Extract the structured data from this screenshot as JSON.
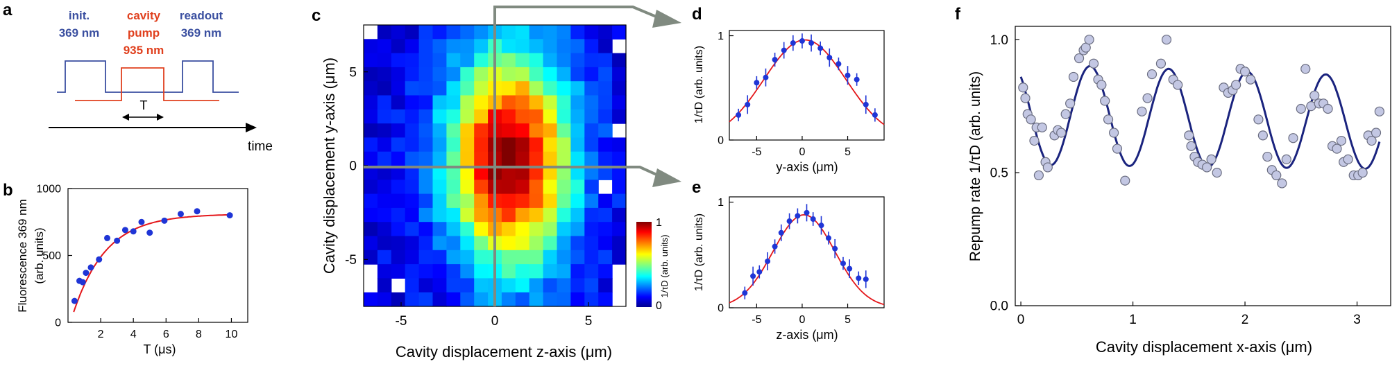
{
  "panel_letters": {
    "a": "a",
    "b": "b",
    "c": "c",
    "d": "d",
    "e": "e",
    "f": "f"
  },
  "colors": {
    "blue": "#3a4fa0",
    "red": "#e0401e",
    "fit_red": "#e4161a",
    "points": "#1f35d6",
    "navy": "#1a237e",
    "gray": "#808a80",
    "light_points": "#c3c7e3"
  },
  "pulse": {
    "init_line1": "init.",
    "init_line2": "369 nm",
    "cavity_line1": "cavity",
    "cavity_line2": "pump",
    "cavity_line3": "935 nm",
    "readout_line1": "readout",
    "readout_line2": "369 nm",
    "interval_label": "T",
    "time_label": "time"
  },
  "chart_data": [
    {
      "id": "b",
      "type": "scatter",
      "xlabel": "T (μs)",
      "ylabel_line1": "Fluorescence 369 nm",
      "ylabel_line2": "(arb. units)",
      "xlim": [
        0,
        11
      ],
      "ylim": [
        0,
        1000
      ],
      "xticks": [
        "2",
        "4",
        "6",
        "8",
        "10"
      ],
      "yticks": [
        "0",
        "500",
        "1000"
      ],
      "points": [
        [
          0.4,
          160
        ],
        [
          0.7,
          310
        ],
        [
          0.9,
          300
        ],
        [
          1.1,
          370
        ],
        [
          1.4,
          410
        ],
        [
          1.9,
          470
        ],
        [
          2.4,
          630
        ],
        [
          3.0,
          610
        ],
        [
          3.5,
          690
        ],
        [
          4.0,
          680
        ],
        [
          4.5,
          750
        ],
        [
          5.0,
          670
        ],
        [
          5.9,
          760
        ],
        [
          6.9,
          810
        ],
        [
          7.9,
          830
        ],
        [
          9.9,
          800
        ]
      ],
      "fit": {
        "model": "a*(1-exp(-(x-x0)/tau))",
        "a": 810,
        "tau": 2.0,
        "x0": 0.15
      }
    },
    {
      "id": "c",
      "type": "heatmap",
      "xlabel": "Cavity displacement z-axis (μm)",
      "ylabel": "Cavity displacement y-axis (μm)",
      "xlim": [
        -7,
        7
      ],
      "ylim": [
        -7.5,
        7.5
      ],
      "xticks": [
        "-5",
        "0",
        "5"
      ],
      "yticks": [
        "-5",
        "0",
        "5"
      ],
      "colorbar": {
        "min_label": "0",
        "max_label": "1",
        "label": "1/τD (arb. units)"
      },
      "peak": {
        "z": 0.8,
        "y": 0.3,
        "sigma_z": 2.3,
        "sigma_y": 4.0
      }
    },
    {
      "id": "d",
      "type": "scatter",
      "xlabel": "y-axis (μm)",
      "ylabel": "1/τD (arb. units)",
      "xlim": [
        -8,
        9
      ],
      "ylim": [
        0,
        1.05
      ],
      "xticks": [
        "-5",
        "0",
        "5"
      ],
      "yticks": [
        "0",
        "1"
      ],
      "points": [
        [
          -7,
          0.24
        ],
        [
          -6,
          0.34
        ],
        [
          -5,
          0.55
        ],
        [
          -4,
          0.6
        ],
        [
          -3,
          0.77
        ],
        [
          -2,
          0.86
        ],
        [
          -1,
          0.93
        ],
        [
          0,
          0.95
        ],
        [
          1,
          0.93
        ],
        [
          2,
          0.88
        ],
        [
          3,
          0.79
        ],
        [
          4,
          0.73
        ],
        [
          5,
          0.62
        ],
        [
          6,
          0.58
        ],
        [
          7,
          0.34
        ],
        [
          8,
          0.24
        ]
      ],
      "fit": {
        "model": "gaussian",
        "amp": 0.96,
        "center": 0.3,
        "sigma": 4.5
      }
    },
    {
      "id": "e",
      "type": "scatter",
      "xlabel": "z-axis (μm)",
      "ylabel": "1/τD (arb. units)",
      "xlim": [
        -8,
        9
      ],
      "ylim": [
        0,
        1.05
      ],
      "xticks": [
        "-5",
        "0",
        "5"
      ],
      "yticks": [
        "0",
        "1"
      ],
      "points": [
        [
          -6.3,
          0.14
        ],
        [
          -5.4,
          0.3
        ],
        [
          -4.7,
          0.34
        ],
        [
          -3.8,
          0.44
        ],
        [
          -3.0,
          0.58
        ],
        [
          -2.3,
          0.71
        ],
        [
          -1.4,
          0.82
        ],
        [
          -0.5,
          0.87
        ],
        [
          0.5,
          0.9
        ],
        [
          1.2,
          0.84
        ],
        [
          2.1,
          0.78
        ],
        [
          2.9,
          0.66
        ],
        [
          3.6,
          0.56
        ],
        [
          4.5,
          0.42
        ],
        [
          5.2,
          0.37
        ],
        [
          6.2,
          0.28
        ],
        [
          7.0,
          0.27
        ]
      ],
      "fit": {
        "model": "gaussian",
        "amp": 0.88,
        "center": 0.2,
        "sigma": 3.4
      }
    },
    {
      "id": "f",
      "type": "scatter",
      "xlabel": "Cavity displacement x-axis (μm)",
      "ylabel": "Repump rate 1/τD (arb. units)",
      "xlim": [
        -0.05,
        3.3
      ],
      "ylim": [
        0,
        1.05
      ],
      "xticks": [
        "0",
        "1",
        "2",
        "3"
      ],
      "yticks": [
        "0.0",
        "0.5",
        "1.0"
      ],
      "points": [
        [
          0.02,
          0.82
        ],
        [
          0.04,
          0.78
        ],
        [
          0.06,
          0.72
        ],
        [
          0.09,
          0.7
        ],
        [
          0.12,
          0.62
        ],
        [
          0.14,
          0.67
        ],
        [
          0.16,
          0.49
        ],
        [
          0.19,
          0.67
        ],
        [
          0.22,
          0.54
        ],
        [
          0.24,
          0.52
        ],
        [
          0.3,
          0.64
        ],
        [
          0.33,
          0.66
        ],
        [
          0.36,
          0.65
        ],
        [
          0.4,
          0.72
        ],
        [
          0.44,
          0.76
        ],
        [
          0.47,
          0.86
        ],
        [
          0.52,
          0.93
        ],
        [
          0.56,
          0.96
        ],
        [
          0.58,
          0.97
        ],
        [
          0.61,
          1.0
        ],
        [
          0.65,
          0.91
        ],
        [
          0.69,
          0.85
        ],
        [
          0.72,
          0.83
        ],
        [
          0.75,
          0.77
        ],
        [
          0.78,
          0.7
        ],
        [
          0.83,
          0.65
        ],
        [
          0.86,
          0.59
        ],
        [
          0.93,
          0.47
        ],
        [
          1.08,
          0.73
        ],
        [
          1.13,
          0.78
        ],
        [
          1.17,
          0.87
        ],
        [
          1.25,
          0.91
        ],
        [
          1.3,
          1.0
        ],
        [
          1.36,
          0.85
        ],
        [
          1.4,
          0.83
        ],
        [
          1.5,
          0.64
        ],
        [
          1.52,
          0.6
        ],
        [
          1.55,
          0.56
        ],
        [
          1.58,
          0.54
        ],
        [
          1.62,
          0.53
        ],
        [
          1.66,
          0.52
        ],
        [
          1.7,
          0.55
        ],
        [
          1.75,
          0.5
        ],
        [
          1.81,
          0.82
        ],
        [
          1.85,
          0.8
        ],
        [
          1.89,
          0.81
        ],
        [
          1.92,
          0.83
        ],
        [
          1.96,
          0.89
        ],
        [
          2.0,
          0.88
        ],
        [
          2.05,
          0.85
        ],
        [
          2.12,
          0.7
        ],
        [
          2.16,
          0.64
        ],
        [
          2.2,
          0.56
        ],
        [
          2.24,
          0.51
        ],
        [
          2.28,
          0.49
        ],
        [
          2.33,
          0.46
        ],
        [
          2.37,
          0.55
        ],
        [
          2.43,
          0.63
        ],
        [
          2.5,
          0.74
        ],
        [
          2.54,
          0.89
        ],
        [
          2.59,
          0.75
        ],
        [
          2.62,
          0.79
        ],
        [
          2.66,
          0.76
        ],
        [
          2.7,
          0.76
        ],
        [
          2.74,
          0.74
        ],
        [
          2.78,
          0.6
        ],
        [
          2.82,
          0.59
        ],
        [
          2.86,
          0.62
        ],
        [
          2.88,
          0.54
        ],
        [
          2.92,
          0.55
        ],
        [
          2.97,
          0.49
        ],
        [
          3.01,
          0.49
        ],
        [
          3.05,
          0.5
        ],
        [
          3.1,
          0.64
        ],
        [
          3.13,
          0.62
        ],
        [
          3.17,
          0.65
        ],
        [
          3.2,
          0.73
        ]
      ],
      "fit": {
        "model": "oscillation",
        "period": 0.68
      }
    }
  ]
}
